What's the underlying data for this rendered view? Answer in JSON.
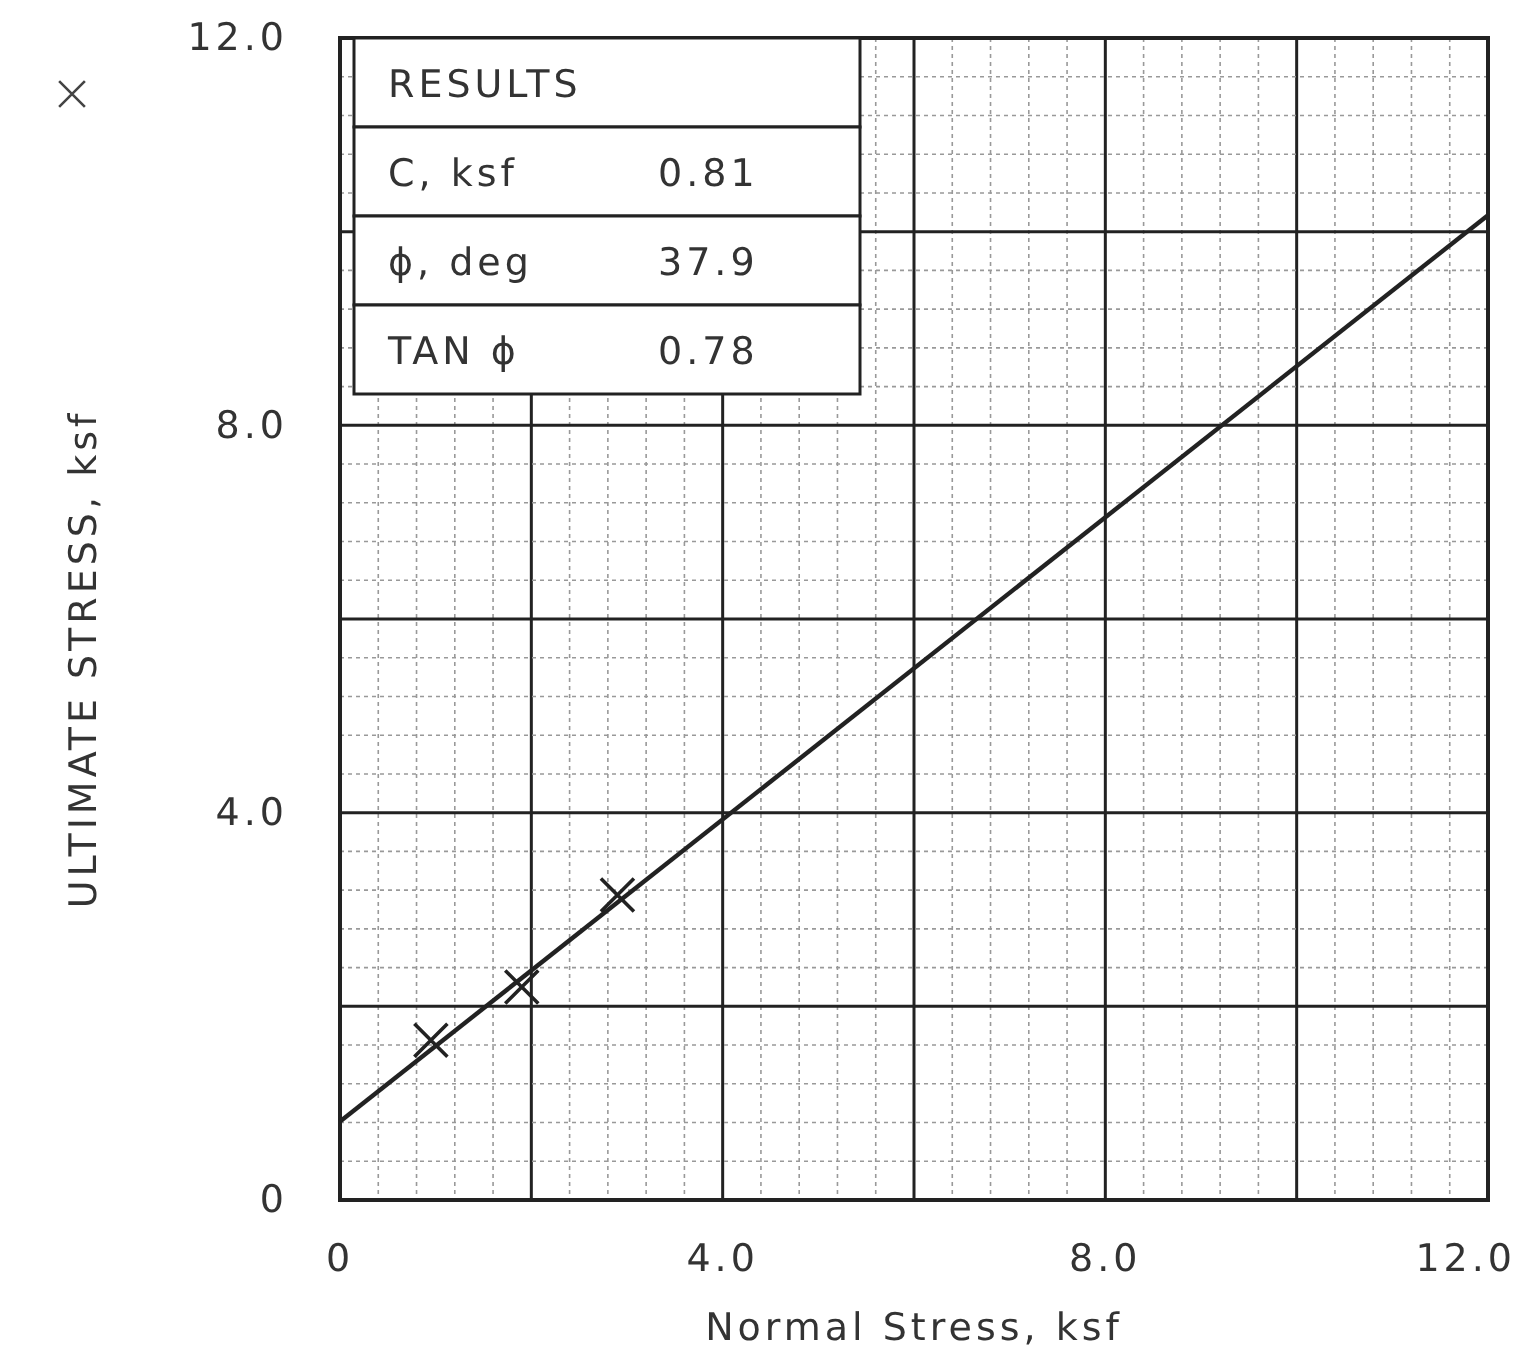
{
  "chart_data": {
    "type": "scatter",
    "xlabel": "Normal Stress, ksf",
    "ylabel": "ULTIMATE STRESS, ksf",
    "xlim": [
      0,
      12
    ],
    "ylim": [
      0,
      12
    ],
    "xticks": [
      0,
      {
        "value": 2,
        "label": null
      },
      {
        "value": 4,
        "label": "4.0"
      },
      {
        "value": 6,
        "label": null
      },
      {
        "value": 8,
        "label": "8.0"
      },
      {
        "value": 10,
        "label": null
      },
      {
        "value": 12,
        "label": "12.0"
      }
    ],
    "yticks": [
      0,
      {
        "value": 2,
        "label": null
      },
      {
        "value": 4,
        "label": "4.0"
      },
      {
        "value": 6,
        "label": null
      },
      {
        "value": 8,
        "label": "8.0"
      },
      {
        "value": 10,
        "label": null
      },
      {
        "value": 12,
        "label": "12.0"
      }
    ],
    "grid": true,
    "series": [
      {
        "marker": "cross",
        "color": "#222222",
        "x": [
          0.95,
          1.9,
          2.9
        ],
        "values": [
          1.65,
          2.2,
          3.15
        ]
      },
      {
        "type": "line",
        "marker": "none",
        "line_style": "solid",
        "color": "#222222",
        "x": [
          0,
          12
        ],
        "values": [
          0.81,
          10.17
        ]
      }
    ],
    "annotations": [
      "RESULTS",
      "C, ksf  0.81",
      "ϕ, deg  37.9",
      "TAN ϕ  0.78"
    ]
  }
}
